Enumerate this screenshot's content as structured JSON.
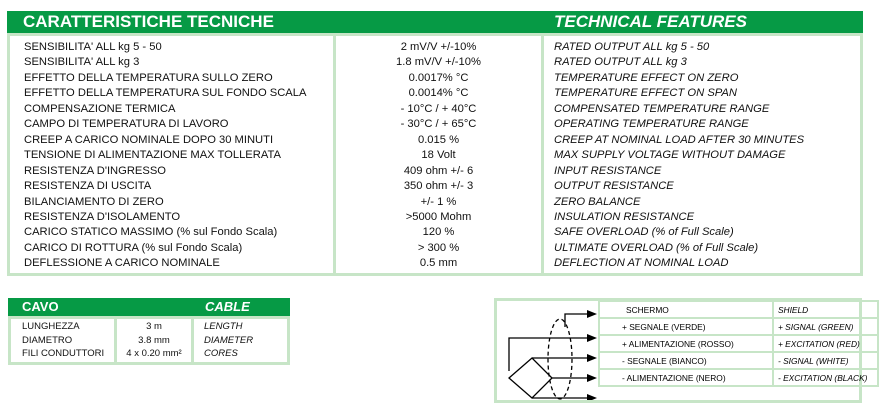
{
  "specs": {
    "title_it": "CARATTERISTICHE TECNICHE",
    "title_en": "TECHNICAL FEATURES",
    "rows": [
      {
        "it": "SENSIBILITA'  ALL kg 5 - 50",
        "value": "2 mV/V  +/-10%",
        "en": "RATED OUTPUT  ALL kg 5 - 50"
      },
      {
        "it": "SENSIBILITA'  ALL kg 3",
        "value": "1.8 mV/V  +/-10%",
        "en": "RATED OUTPUT  ALL kg 3"
      },
      {
        "it": "EFFETTO DELLA TEMPERATURA SULLO ZERO",
        "value": "0.0017% °C",
        "en": "TEMPERATURE EFFECT ON ZERO"
      },
      {
        "it": "EFFETTO DELLA TEMPERATURA SUL FONDO SCALA",
        "value": "0.0014% °C",
        "en": "TEMPERATURE EFFECT ON SPAN"
      },
      {
        "it": "COMPENSAZIONE TERMICA",
        "value": "- 10°C / + 40°C",
        "en": "COMPENSATED TEMPERATURE RANGE"
      },
      {
        "it": "CAMPO DI TEMPERATURA DI LAVORO",
        "value": "- 30°C / + 65°C",
        "en": "OPERATING TEMPERATURE RANGE"
      },
      {
        "it": "CREEP A CARICO NOMINALE DOPO 30 MINUTI",
        "value": "0.015 %",
        "en": "CREEP AT NOMINAL LOAD AFTER 30 MINUTES"
      },
      {
        "it": "TENSIONE DI ALIMENTAZIONE MAX TOLLERATA",
        "value": "18 Volt",
        "en": "MAX SUPPLY VOLTAGE WITHOUT DAMAGE"
      },
      {
        "it": "RESISTENZA D'INGRESSO",
        "value": "409 ohm +/- 6",
        "en": "INPUT RESISTANCE"
      },
      {
        "it": "RESISTENZA DI USCITA",
        "value": "350 ohm  +/- 3",
        "en": "OUTPUT RESISTANCE"
      },
      {
        "it": "BILANCIAMENTO DI ZERO",
        "value": "+/- 1 %",
        "en": "ZERO BALANCE"
      },
      {
        "it": "RESISTENZA D'ISOLAMENTO",
        "value": ">5000 Mohm",
        "en": "INSULATION RESISTANCE"
      },
      {
        "it": "CARICO STATICO MASSIMO (% sul Fondo Scala)",
        "value": "120 %",
        "en": "SAFE OVERLOAD (% of Full Scale)"
      },
      {
        "it": "CARICO DI ROTTURA (% sul Fondo Scala)",
        "value": "> 300 %",
        "en": "ULTIMATE OVERLOAD (% of Full Scale)"
      },
      {
        "it": "DEFLESSIONE A CARICO NOMINALE",
        "value": "0.5 mm",
        "en": "DEFLECTION AT NOMINAL LOAD"
      }
    ]
  },
  "cable": {
    "title_it": "CAVO",
    "title_en": "CABLE",
    "rows": [
      {
        "it": "LUNGHEZZA",
        "value": "3 m",
        "en": "LENGTH"
      },
      {
        "it": "DIAMETRO",
        "value": "3.8 mm",
        "en": "DIAMETER"
      },
      {
        "it": "FILI CONDUTTORI",
        "value": "4 x 0.20 mm²",
        "en": "CORES"
      }
    ]
  },
  "wiring": [
    {
      "it": "SCHERMO",
      "en": "SHIELD"
    },
    {
      "it": "+ SEGNALE (VERDE)",
      "en": "+ SIGNAL (GREEN)"
    },
    {
      "it": "+ ALIMENTAZIONE (ROSSO)",
      "en": "+ EXCITATION (RED)"
    },
    {
      "it": "- SEGNALE (BIANCO)",
      "en": "- SIGNAL (WHITE)"
    },
    {
      "it": "- ALIMENTAZIONE (NERO)",
      "en": "- EXCITATION (BLACK)"
    }
  ],
  "colors": {
    "header_green": "#069a45",
    "border_green": "#c7e5c7"
  }
}
